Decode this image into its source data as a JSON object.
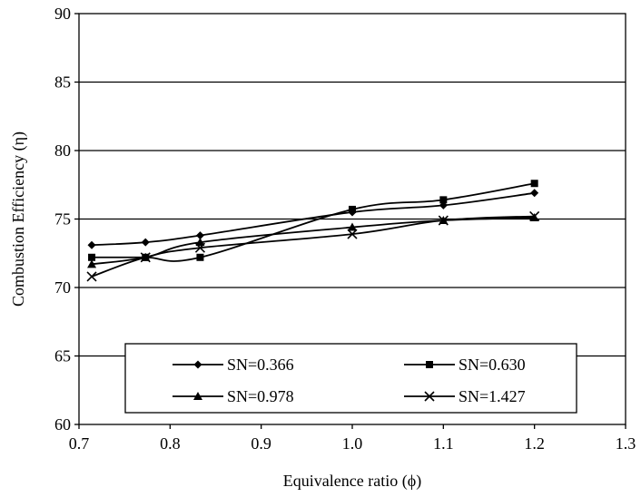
{
  "chart_data": {
    "type": "line",
    "xlabel": "Equivalence ratio (ϕ)",
    "ylabel": "Combustion Efficiency (η)",
    "xlim": [
      0.7,
      1.3
    ],
    "ylim": [
      60,
      90
    ],
    "xticks": [
      "0.7",
      "0.8",
      "0.9",
      "1.0",
      "1.1",
      "1.2",
      "1.3"
    ],
    "yticks": [
      "60",
      "65",
      "70",
      "75",
      "80",
      "85",
      "90"
    ],
    "grid": "horizontal major gridlines",
    "legend_position": "bottom-center inside plot",
    "series": [
      {
        "name": "SN=0.366",
        "marker": "diamond",
        "x": [
          0.714,
          0.773,
          0.833,
          1.0,
          1.1,
          1.2
        ],
        "y": [
          73.1,
          73.3,
          73.8,
          75.5,
          76.0,
          76.9
        ]
      },
      {
        "name": "SN=0.630",
        "marker": "square",
        "x": [
          0.714,
          0.773,
          0.833,
          1.0,
          1.1,
          1.2
        ],
        "y": [
          72.2,
          72.2,
          72.2,
          75.7,
          76.4,
          77.6
        ]
      },
      {
        "name": "SN=0.978",
        "marker": "triangle",
        "x": [
          0.714,
          0.773,
          0.833,
          1.0,
          1.1,
          1.2
        ],
        "y": [
          71.7,
          72.2,
          73.3,
          74.4,
          74.9,
          75.1
        ]
      },
      {
        "name": "SN=1.427",
        "marker": "x",
        "x": [
          0.714,
          0.773,
          0.833,
          1.0,
          1.1,
          1.2
        ],
        "y": [
          70.8,
          72.2,
          72.9,
          73.9,
          74.9,
          75.2
        ]
      }
    ]
  }
}
